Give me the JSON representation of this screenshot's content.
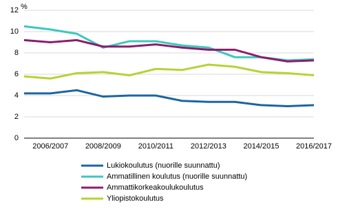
{
  "chart_data": {
    "type": "line",
    "y_label": "%",
    "categories": [
      null,
      "2006/2007",
      null,
      "2008/2009",
      null,
      "2010/2011",
      null,
      "2012/2013",
      null,
      "2014/2015",
      null,
      "2016/2017"
    ],
    "series": [
      {
        "name": "Lukiokoulutus (nuorille suunnattu)",
        "color": "#1b65a0",
        "values": [
          4.2,
          4.2,
          4.5,
          3.9,
          4.0,
          4.0,
          3.5,
          3.4,
          3.4,
          3.1,
          3.0,
          3.1
        ]
      },
      {
        "name": "Ammatillinen koulutus  (nuorille suunnattu)",
        "color": "#3cc8bd",
        "values": [
          10.5,
          10.2,
          9.8,
          8.5,
          9.1,
          9.1,
          8.7,
          8.5,
          7.6,
          7.6,
          7.3,
          7.4
        ]
      },
      {
        "name": "Ammattikorkeakoulukoulutus",
        "color": "#8c1c6e",
        "values": [
          9.2,
          9.0,
          9.2,
          8.6,
          8.6,
          8.8,
          8.5,
          8.3,
          8.3,
          7.6,
          7.2,
          7.3
        ]
      },
      {
        "name": "Yliopistokoulutus",
        "color": "#b4d432",
        "values": [
          5.8,
          5.6,
          6.1,
          6.2,
          5.9,
          6.5,
          6.4,
          6.9,
          6.7,
          6.2,
          6.1,
          5.9
        ]
      }
    ],
    "ylim": [
      0,
      12
    ],
    "yticks": [
      0,
      2,
      4,
      6,
      8,
      10,
      12
    ],
    "grid": true
  }
}
